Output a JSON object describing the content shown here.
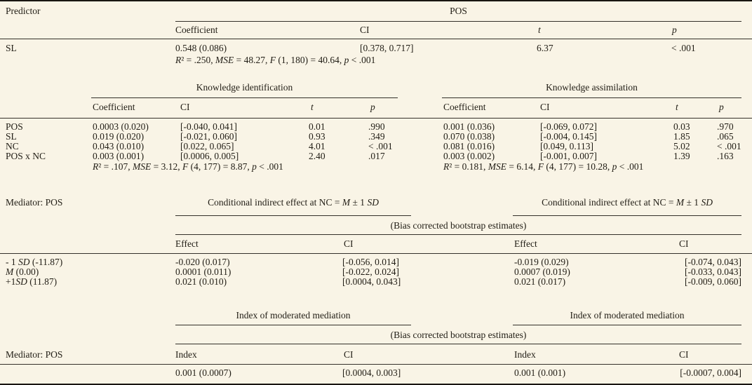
{
  "palette": {
    "background": "#f9f4e6",
    "text": "#211d15",
    "rule": "#34302a"
  },
  "s1": {
    "predictor_label": "Predictor",
    "group_title": "POS",
    "headers": {
      "coefficient": "Coefficient",
      "ci": "CI",
      "t": "t",
      "p": "p"
    },
    "row": {
      "label": "SL",
      "coefficient": "0.548 (0.086)",
      "ci": "[0.378, 0.717]",
      "t": "6.37",
      "p": "< .001"
    },
    "stats": [
      [
        "i",
        "R"
      ],
      [
        "r",
        "² = .250, "
      ],
      [
        "i",
        "MSE"
      ],
      [
        "r",
        " = 48.27, "
      ],
      [
        "i",
        "F"
      ],
      [
        "r",
        " (1, 180) = 40.64, "
      ],
      [
        "i",
        "p"
      ],
      [
        "r",
        " < .001"
      ]
    ]
  },
  "s2": {
    "row_labels": [
      "POS",
      "SL",
      "NC",
      "POS x NC"
    ],
    "headers": {
      "coefficient": "Coefficient",
      "ci": "CI",
      "t": "t",
      "p": "p"
    },
    "left": {
      "title": "Knowledge identification",
      "rows": [
        {
          "coef": "0.0003 (0.020)",
          "ci": "[-0.040, 0.041]",
          "t": "0.01",
          "p": ".990"
        },
        {
          "coef": "0.019 (0.020)",
          "ci": "[-0.021, 0.060]",
          "t": "0.93",
          "p": ".349"
        },
        {
          "coef": "0.043 (0.010)",
          "ci": "[0.022, 0.065]",
          "t": "4.01",
          "p": "< .001"
        },
        {
          "coef": "0.003 (0.001)",
          "ci": "[0.0006, 0.005]",
          "t": "2.40",
          "p": ".017"
        }
      ],
      "stats": [
        [
          "i",
          "R"
        ],
        [
          "r",
          "² = .107, "
        ],
        [
          "i",
          "MSE"
        ],
        [
          "r",
          " = 3.12, "
        ],
        [
          "i",
          "F"
        ],
        [
          "r",
          " (4, 177) = 8.87, "
        ],
        [
          "i",
          "p"
        ],
        [
          "r",
          " < .001"
        ]
      ]
    },
    "right": {
      "title": "Knowledge assimilation",
      "rows": [
        {
          "coef": "0.001 (0.036)",
          "ci": "[-0.069, 0.072]",
          "t": "0.03",
          "p": ".970"
        },
        {
          "coef": "0.070 (0.038)",
          "ci": "[-0.004, 0.145]",
          "t": "1.85",
          "p": ".065"
        },
        {
          "coef": "0.081 (0.016)",
          "ci": "[0.049, 0.113]",
          "t": "5.02",
          "p": "< .001"
        },
        {
          "coef": "0.003 (0.002)",
          "ci": "[-0.001, 0.007]",
          "t": "1.39",
          "p": ".163"
        }
      ],
      "stats": [
        [
          "i",
          "R"
        ],
        [
          "r",
          "² = 0.181, "
        ],
        [
          "i",
          "MSE"
        ],
        [
          "r",
          " = 6.14, "
        ],
        [
          "i",
          "F"
        ],
        [
          "r",
          " (4, 177) = 10.28, "
        ],
        [
          "i",
          "p"
        ],
        [
          "r",
          " < .001"
        ]
      ]
    }
  },
  "s3": {
    "mediator_label": "Mediator: POS",
    "group_title": [
      [
        "r",
        "Conditional indirect effect at NC = "
      ],
      [
        "i",
        "M"
      ],
      [
        "r",
        " ± 1 "
      ],
      [
        "i",
        "SD"
      ]
    ],
    "bias_note": "(Bias corrected bootstrap estimates)",
    "headers": {
      "effect": "Effect",
      "ci": "CI"
    },
    "row_labels": [
      [
        [
          "r",
          "- 1 "
        ],
        [
          "i",
          "SD"
        ],
        [
          "r",
          " (-11.87)"
        ]
      ],
      [
        [
          "i",
          "M"
        ],
        [
          "r",
          " (0.00)"
        ]
      ],
      [
        [
          "r",
          "+1"
        ],
        [
          "i",
          "SD"
        ],
        [
          "r",
          " (11.87)"
        ]
      ]
    ],
    "left": {
      "rows": [
        {
          "effect": "-0.020 (0.017)",
          "ci": "[-0.056, 0.014]"
        },
        {
          "effect": "0.0001 (0.011)",
          "ci": "[-0.022, 0.024]"
        },
        {
          "effect": "0.021 (0.010)",
          "ci": "[0.0004, 0.043]"
        }
      ]
    },
    "right": {
      "rows": [
        {
          "effect": "-0.019 (0.029)",
          "ci": "[-0.074, 0.043]"
        },
        {
          "effect": "0.0007 (0.019)",
          "ci": "[-0.033, 0.043]"
        },
        {
          "effect": "0.021 (0.017)",
          "ci": "[-0.009, 0.060]"
        }
      ]
    }
  },
  "s4": {
    "mediator_label": "Mediator: POS",
    "group_title": "Index of moderated mediation",
    "bias_note": "(Bias corrected bootstrap estimates)",
    "headers": {
      "index": "Index",
      "ci": "CI"
    },
    "left": {
      "index": "0.001 (0.0007)",
      "ci": "[0.0004, 0.003]"
    },
    "right": {
      "index": "0.001 (0.001)",
      "ci": "[-0.0007, 0.004]"
    }
  }
}
